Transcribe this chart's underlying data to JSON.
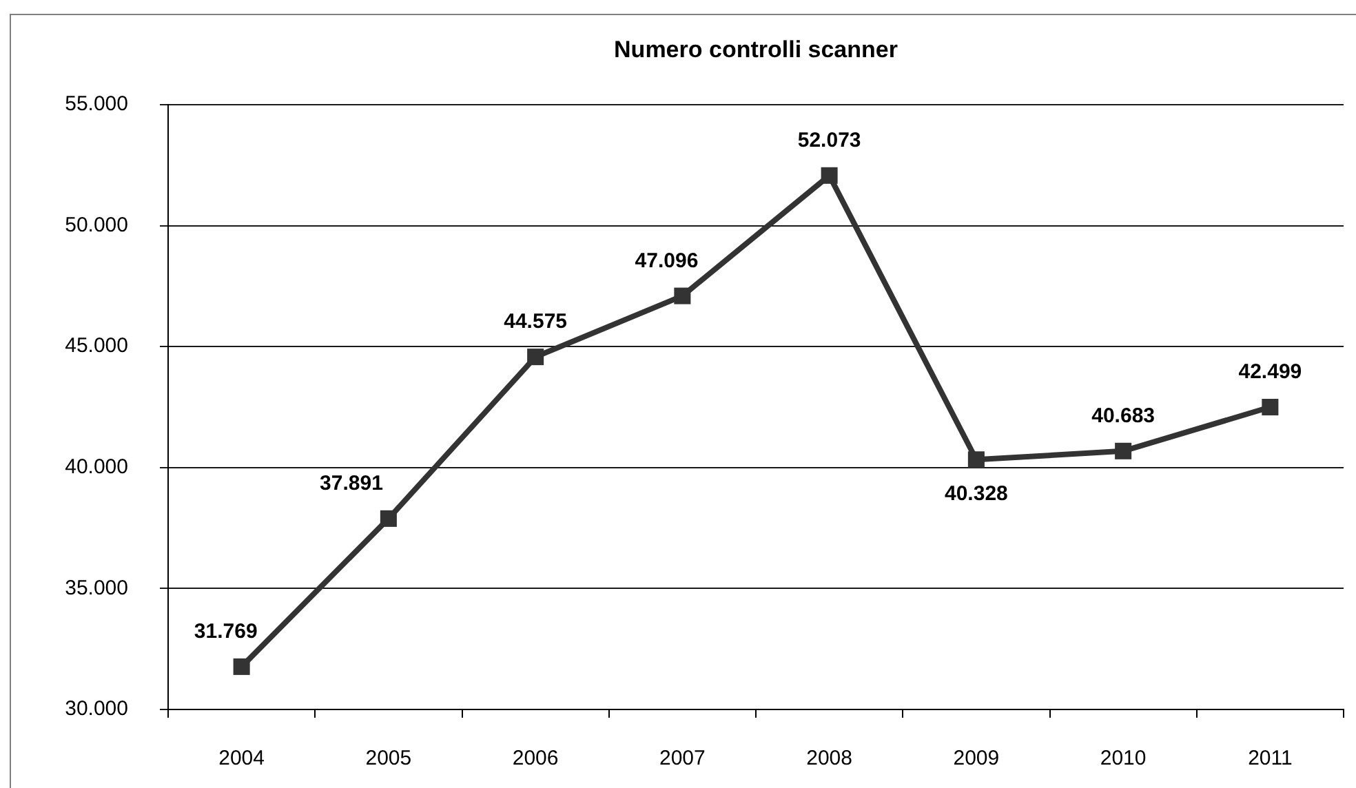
{
  "chart_data": {
    "type": "line",
    "title": "Numero controlli scanner",
    "categories": [
      "2004",
      "2005",
      "2006",
      "2007",
      "2008",
      "2009",
      "2010",
      "2011"
    ],
    "values": [
      31769,
      37891,
      44575,
      47096,
      52073,
      40328,
      40683,
      42499
    ],
    "value_labels": [
      "31.769",
      "37.891",
      "44.575",
      "47.096",
      "52.073",
      "40.328",
      "40.683",
      "42.499"
    ],
    "color": "#333333",
    "ylim": [
      30000,
      55000
    ],
    "yticks": [
      {
        "value": 30000,
        "label": "30.000"
      },
      {
        "value": 35000,
        "label": "35.000"
      },
      {
        "value": 40000,
        "label": "40.000"
      },
      {
        "value": 45000,
        "label": "45.000"
      },
      {
        "value": 50000,
        "label": "50.000"
      },
      {
        "value": 55000,
        "label": "55.000"
      }
    ],
    "grid": "y",
    "legend": false,
    "marker": "square",
    "line_style": "solid"
  }
}
